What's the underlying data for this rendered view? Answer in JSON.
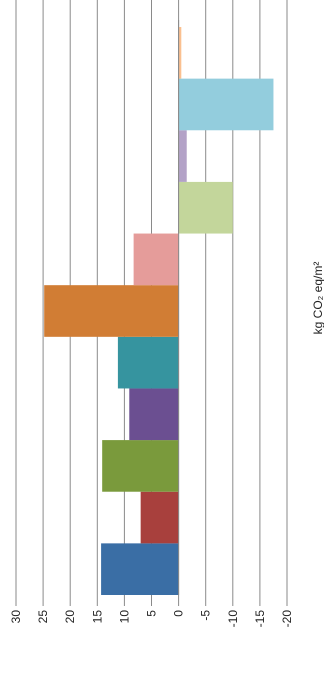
{
  "chart_data": {
    "type": "bar",
    "orientation": "horizontal-bars, rotated 90 degrees counter-clockwise",
    "xlabel": "kg CO₂ eq/m²",
    "xlim": [
      30,
      -20
    ],
    "tick_values": [
      30,
      25,
      20,
      15,
      10,
      5,
      0,
      -5,
      -10,
      -15,
      -20
    ],
    "tick_labels": [
      "30",
      "25",
      "20",
      "15",
      "10",
      "5",
      "0",
      "-5",
      "-10",
      "-15",
      "-20"
    ],
    "grid": true,
    "bars": [
      {
        "value": 14.3,
        "color": "#3a6ea5"
      },
      {
        "value": 7.0,
        "color": "#a8403d"
      },
      {
        "value": 14.1,
        "color": "#7a9a3c"
      },
      {
        "value": 9.1,
        "color": "#6b4f91"
      },
      {
        "value": 11.2,
        "color": "#36949f"
      },
      {
        "value": 24.8,
        "color": "#d17d34"
      },
      {
        "value": 8.3,
        "color": "#e59c9a"
      },
      {
        "value": -10.0,
        "color": "#c3d69b"
      },
      {
        "value": -1.5,
        "color": "#b3a2c7"
      },
      {
        "value": -17.5,
        "color": "#93cddd"
      },
      {
        "value": -0.5,
        "color": "#fac090"
      }
    ]
  }
}
